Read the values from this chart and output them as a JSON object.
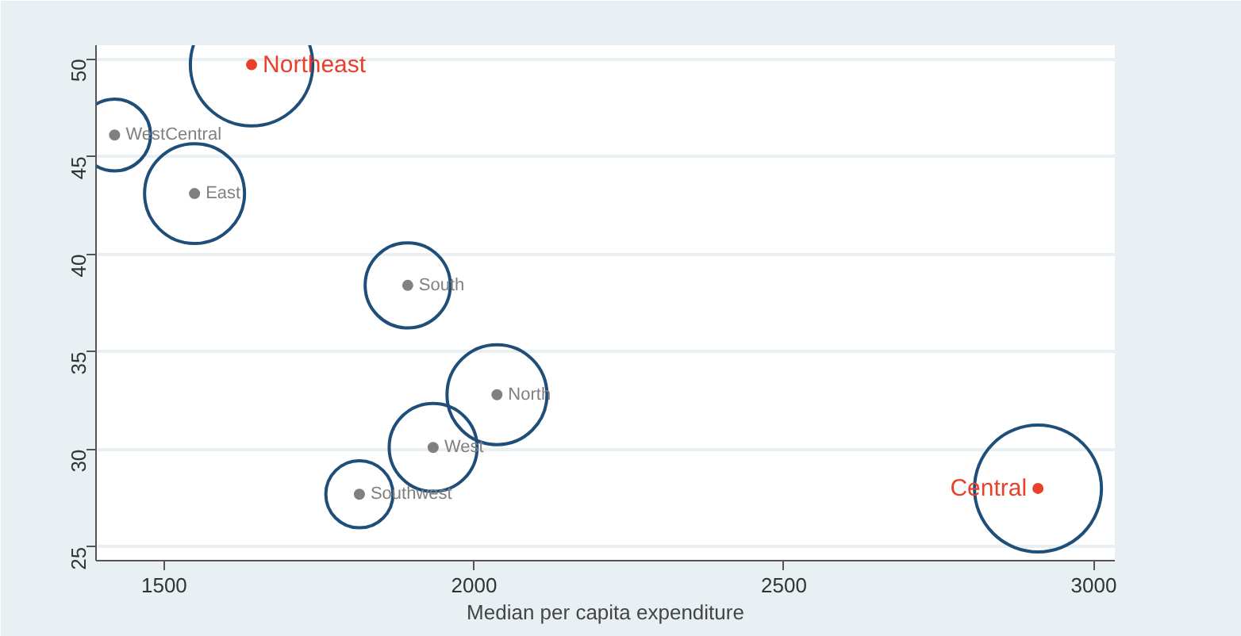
{
  "chart_data": {
    "type": "bubble",
    "xlabel": "Median per capita expenditure",
    "xlim": [
      1390,
      3034
    ],
    "ylim": [
      24.3,
      50.7
    ],
    "xticks": [
      1500,
      2000,
      2500,
      3000
    ],
    "yticks": [
      25,
      30,
      35,
      40,
      45,
      50
    ],
    "grid": "y",
    "series": [
      {
        "color": "#1f4e79",
        "x": [
          1420,
          1549,
          1893,
          2037,
          1934,
          1815
        ],
        "values": [
          46.1,
          43.1,
          38.4,
          32.8,
          30.1,
          27.7
        ],
        "sizes": [
          0.32,
          0.62,
          0.45,
          0.62,
          0.48,
          0.28
        ]
      },
      {
        "color": "#1f4e79",
        "x": [
          1641,
          2910
        ],
        "values": [
          49.7,
          28.0
        ],
        "sizes": [
          0.93,
          1
        ]
      }
    ],
    "annotations": [
      {
        "text": "Northeast",
        "x": 1641,
        "y": 49.7
      },
      {
        "text": "WestCentral",
        "x": 1420,
        "y": 46.1
      },
      {
        "text": "East",
        "x": 1549,
        "y": 43.1
      },
      {
        "text": "South",
        "x": 1893,
        "y": 38.4
      },
      {
        "text": "North",
        "x": 2037,
        "y": 32.8
      },
      {
        "text": "West",
        "x": 1934,
        "y": 30.1
      },
      {
        "text": "Southwest",
        "x": 1815,
        "y": 27.7
      },
      {
        "text": "Central",
        "x": 2910,
        "y": 28.0
      }
    ]
  }
}
